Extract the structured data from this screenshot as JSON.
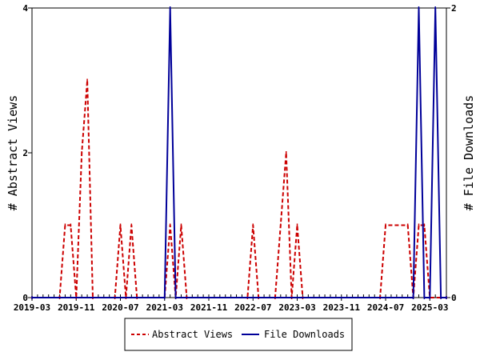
{
  "chart_data": {
    "type": "line",
    "title": "",
    "ylabel_left": "# Abstract Views",
    "ylabel_right": "# File Downloads",
    "ylim_left": [
      0,
      4
    ],
    "ylim_right": [
      0,
      2
    ],
    "yticks_left": [
      "0",
      "2",
      "4"
    ],
    "yticks_right": [
      "0",
      "2"
    ],
    "x_start": "2019-03",
    "x_end": "2025-06",
    "xticks": [
      "2019-03",
      "2019-11",
      "2020-07",
      "2021-03",
      "2021-11",
      "2022-07",
      "2023-03",
      "2023-11",
      "2024-07",
      "2025-03"
    ],
    "grid": false,
    "legend_position": "bottom-center",
    "series": [
      {
        "name": "Abstract Views",
        "axis": "left",
        "color": "#cc0000",
        "style": "dashed",
        "points": [
          [
            "2019-03",
            0
          ],
          [
            "2019-08",
            0
          ],
          [
            "2019-09",
            1
          ],
          [
            "2019-10",
            1
          ],
          [
            "2019-11",
            0
          ],
          [
            "2019-12",
            2
          ],
          [
            "2020-01",
            3
          ],
          [
            "2020-02",
            0
          ],
          [
            "2020-06",
            0
          ],
          [
            "2020-07",
            1
          ],
          [
            "2020-08",
            0
          ],
          [
            "2020-09",
            1
          ],
          [
            "2020-10",
            0
          ],
          [
            "2021-03",
            0
          ],
          [
            "2021-04",
            1
          ],
          [
            "2021-05",
            0
          ],
          [
            "2021-06",
            1
          ],
          [
            "2021-07",
            0
          ],
          [
            "2022-06",
            0
          ],
          [
            "2022-07",
            1
          ],
          [
            "2022-08",
            0
          ],
          [
            "2022-11",
            0
          ],
          [
            "2022-12",
            1
          ],
          [
            "2023-01",
            2
          ],
          [
            "2023-02",
            0
          ],
          [
            "2023-03",
            1
          ],
          [
            "2023-04",
            0
          ],
          [
            "2024-06",
            0
          ],
          [
            "2024-07",
            1
          ],
          [
            "2024-11",
            1
          ],
          [
            "2024-12",
            0
          ],
          [
            "2025-01",
            1
          ],
          [
            "2025-02",
            1
          ],
          [
            "2025-03",
            0
          ],
          [
            "2025-06",
            0
          ]
        ]
      },
      {
        "name": "File Downloads",
        "axis": "right",
        "color": "#000099",
        "style": "solid",
        "points": [
          [
            "2019-03",
            0
          ],
          [
            "2021-03",
            0
          ],
          [
            "2021-04",
            2
          ],
          [
            "2021-05",
            0
          ],
          [
            "2024-12",
            0
          ],
          [
            "2025-01",
            2
          ],
          [
            "2025-02",
            0
          ],
          [
            "2025-03",
            0
          ],
          [
            "2025-04",
            2
          ],
          [
            "2025-05",
            0
          ],
          [
            "2025-06",
            0
          ]
        ]
      }
    ]
  }
}
